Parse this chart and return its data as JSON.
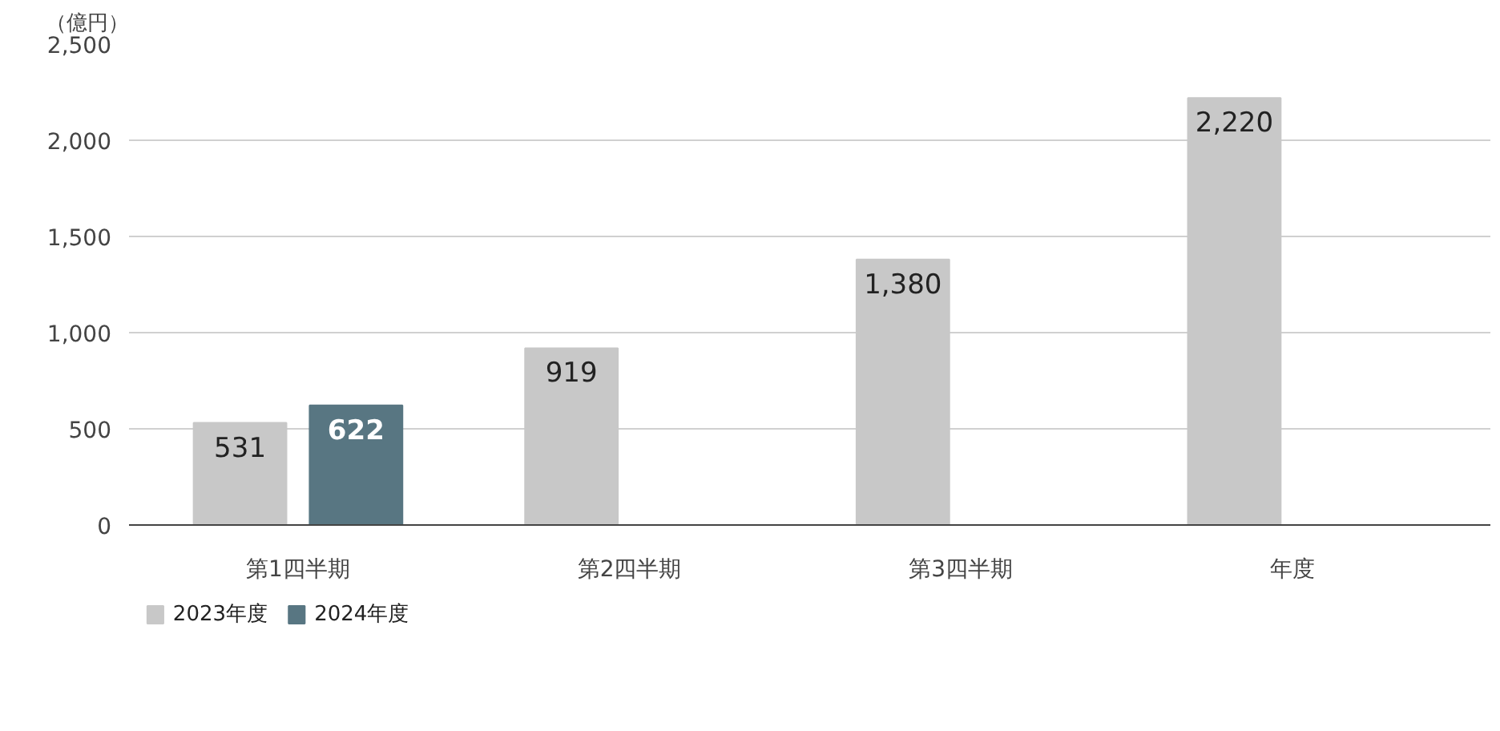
{
  "chart_data": {
    "type": "bar",
    "ylabel": "（億円）",
    "categories": [
      "第1四半期",
      "第2四半期",
      "第3四半期",
      "年度"
    ],
    "series": [
      {
        "name": "2023年度",
        "color": "#c8c8c8",
        "values": [
          531,
          919,
          1380,
          2220
        ],
        "value_labels": [
          "531",
          "919",
          "1,380",
          "2,220"
        ]
      },
      {
        "name": "2024年度",
        "color": "#587682",
        "values": [
          622,
          null,
          null,
          null
        ],
        "value_labels": [
          "622",
          null,
          null,
          null
        ]
      }
    ],
    "ylim": [
      0,
      2500
    ],
    "yticks": [
      0,
      {
        "value": 500,
        "label": "500"
      },
      {
        "value": 1000,
        "label": "1,000"
      },
      {
        "value": 1500,
        "label": "1,500"
      },
      {
        "value": 2000,
        "label": "2,000"
      },
      {
        "value": 2500,
        "label": "2,500"
      }
    ],
    "grid": "y",
    "legend": "bottom left"
  }
}
